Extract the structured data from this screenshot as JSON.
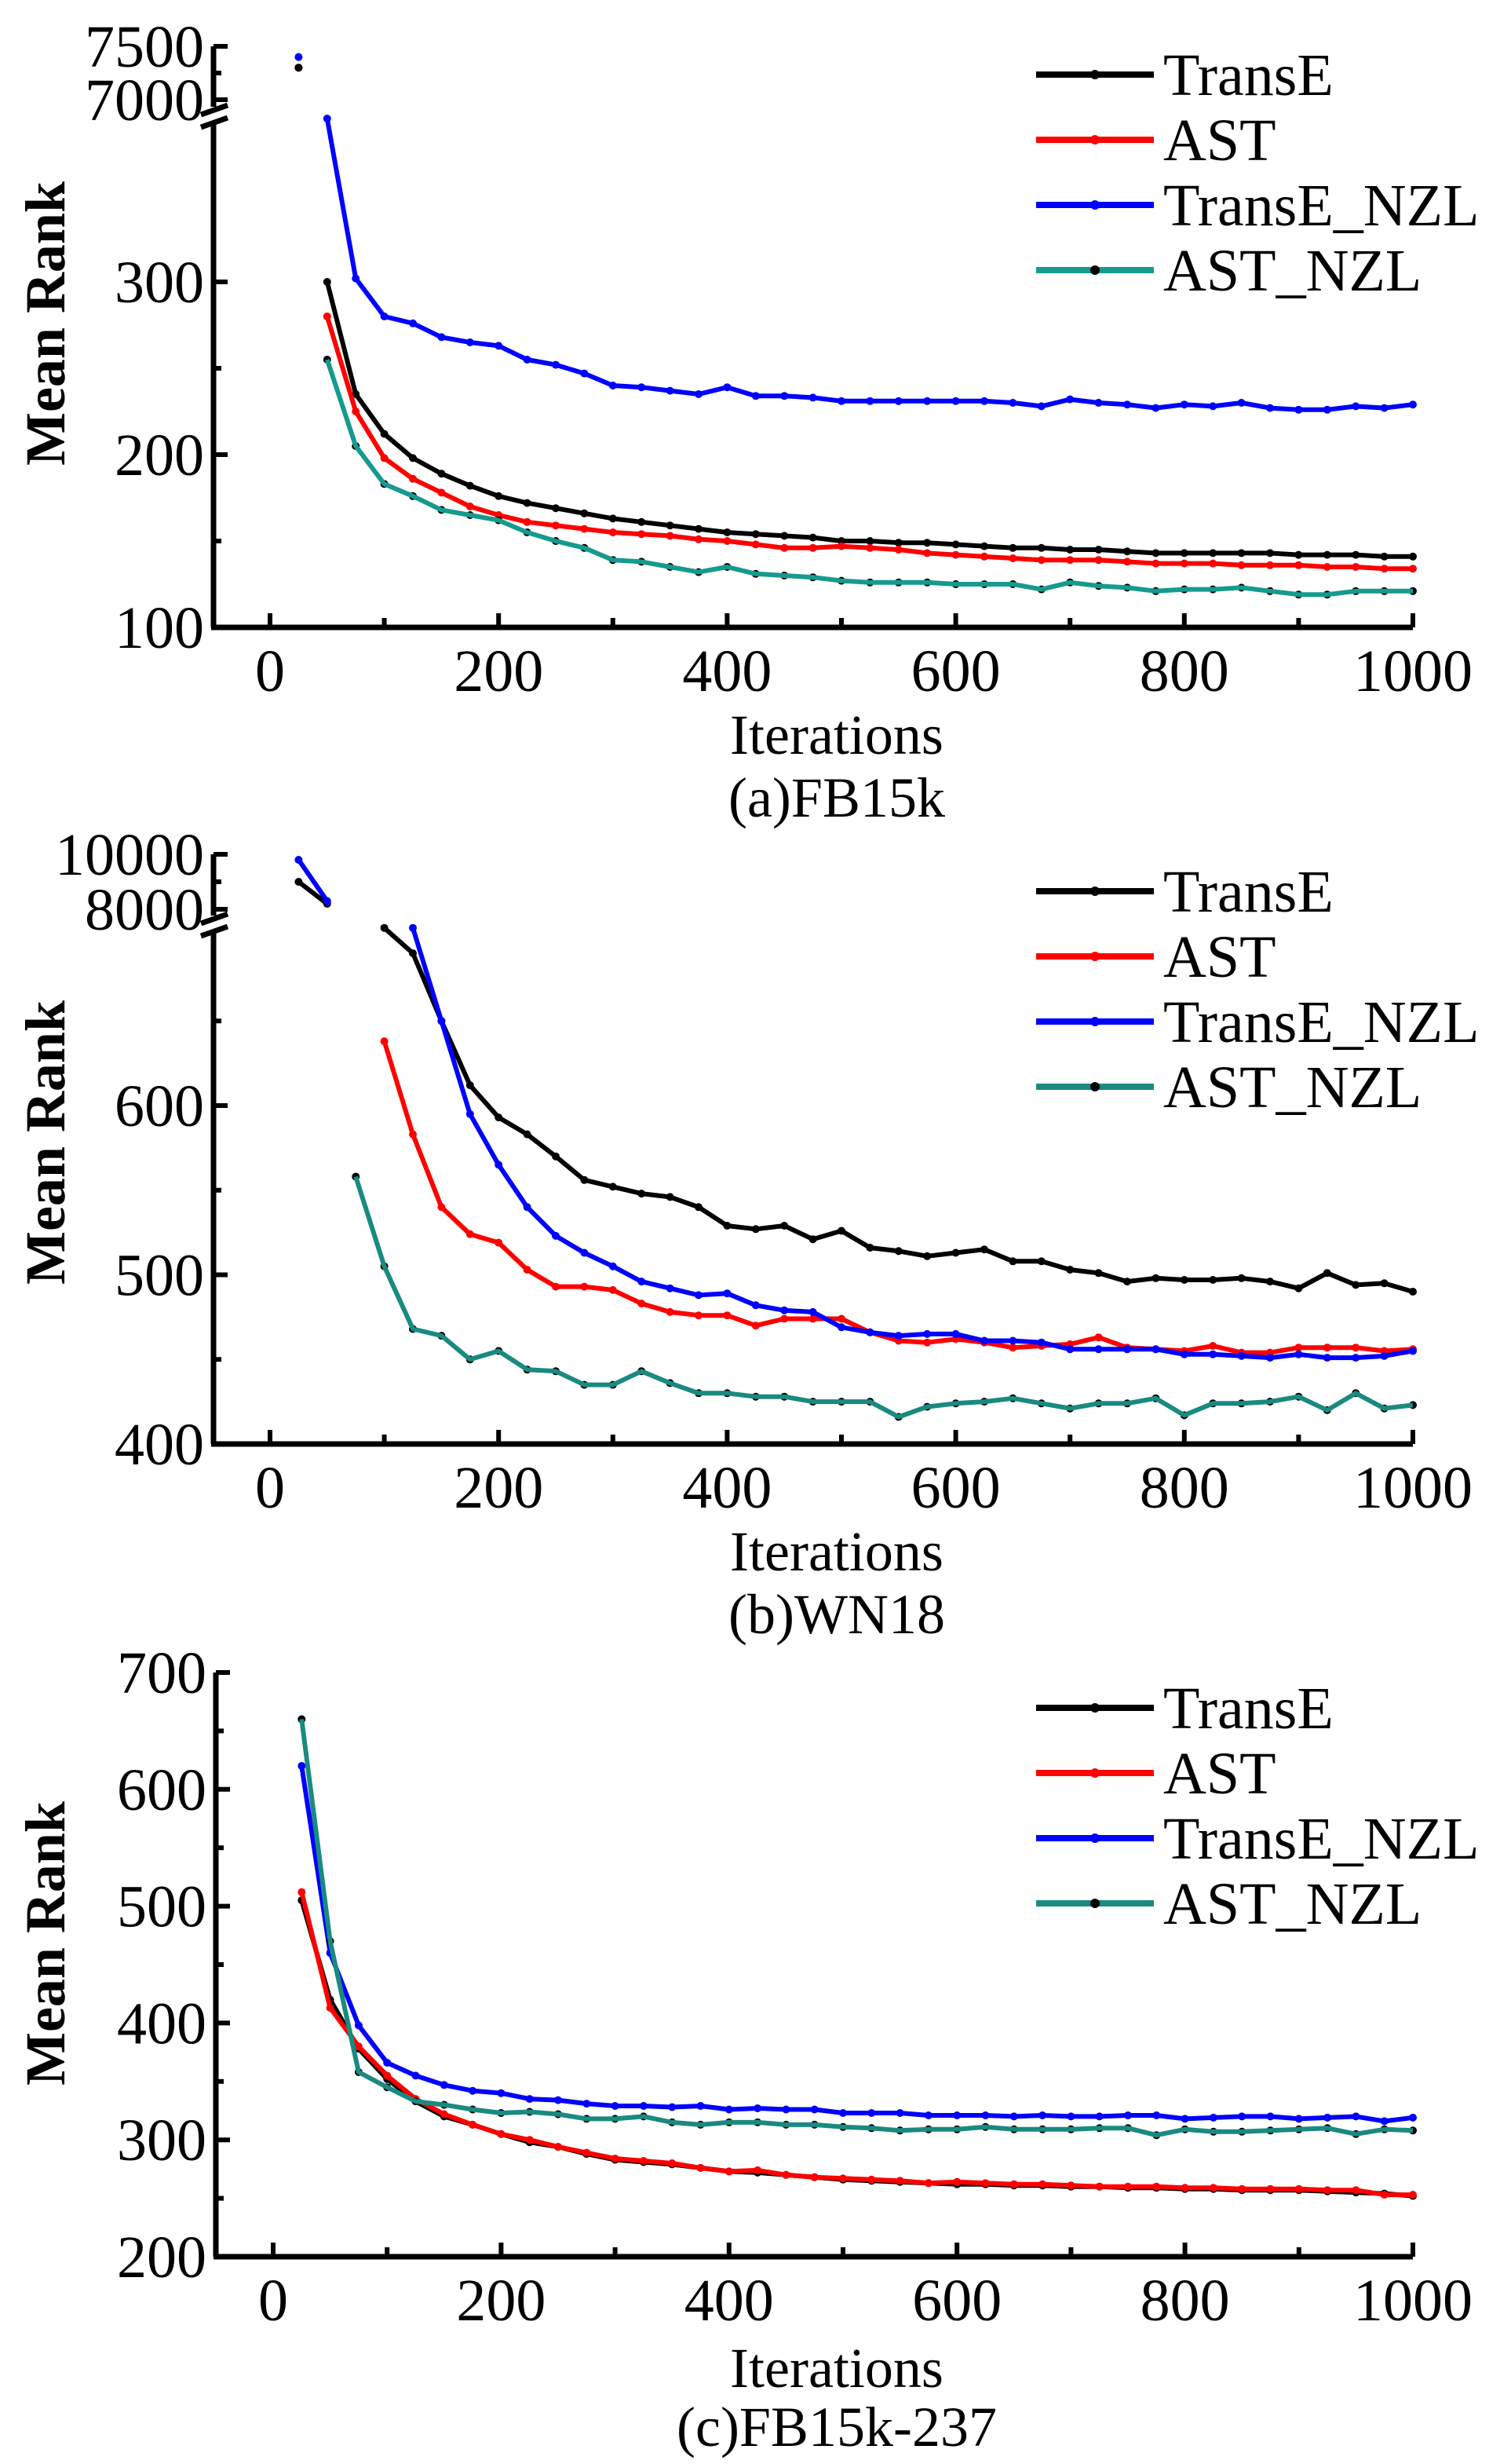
{
  "figure": {
    "legend": [
      "TransE",
      "AST",
      "TransE_NZL",
      "AST_NZL"
    ]
  },
  "chart_data": [
    {
      "type": "line",
      "caption": "(a)FB15k",
      "xlabel": "Iterations",
      "ylabel": "Mean Rank",
      "xlim": [
        -40,
        1000
      ],
      "x_ticks": [
        0,
        200,
        400,
        600,
        800,
        1000
      ],
      "y_axis_break": true,
      "ylim_lower": [
        100,
        350
      ],
      "ylim_upper": [
        7000,
        7500
      ],
      "y_ticks_lower": [
        100,
        200,
        300
      ],
      "y_ticks_upper": [
        7000,
        7500
      ],
      "legend_position": "top-right",
      "grid": false,
      "x": [
        25,
        50,
        75,
        100,
        125,
        150,
        175,
        200,
        225,
        250,
        275,
        300,
        325,
        350,
        375,
        400,
        425,
        450,
        475,
        500,
        525,
        550,
        575,
        600,
        625,
        650,
        675,
        700,
        725,
        750,
        775,
        800,
        825,
        850,
        875,
        900,
        925,
        950,
        975,
        1000
      ],
      "series": [
        {
          "name": "TransE",
          "color": "#000000",
          "values": [
            7300,
            300,
            235,
            212,
            198,
            189,
            182,
            176,
            172,
            169,
            166,
            163,
            161,
            159,
            157,
            155,
            154,
            153,
            152,
            150,
            150,
            149,
            149,
            148,
            147,
            146,
            146,
            145,
            145,
            144,
            143,
            143,
            143,
            143,
            143,
            142,
            142,
            142,
            141,
            141
          ]
        },
        {
          "name": "AST",
          "color": "#ff0000",
          "values": [
            7300,
            280,
            225,
            198,
            186,
            178,
            170,
            165,
            161,
            159,
            157,
            155,
            154,
            153,
            151,
            150,
            148,
            146,
            146,
            147,
            146,
            145,
            143,
            142,
            141,
            140,
            139,
            139,
            139,
            138,
            137,
            137,
            137,
            136,
            136,
            136,
            135,
            135,
            134,
            134
          ]
        },
        {
          "name": "TransE_NZL",
          "color": "#0000ff",
          "values": [
            7400,
            360,
            302,
            280,
            276,
            268,
            265,
            263,
            255,
            252,
            247,
            240,
            239,
            237,
            235,
            239,
            234,
            234,
            233,
            231,
            231,
            231,
            231,
            231,
            231,
            230,
            228,
            232,
            230,
            229,
            227,
            229,
            228,
            230,
            227,
            226,
            226,
            228,
            227,
            229
          ]
        },
        {
          "name": "AST_NZL",
          "color": "#169a8e",
          "values": [
            7300,
            255,
            205,
            183,
            176,
            168,
            165,
            162,
            155,
            150,
            146,
            139,
            138,
            135,
            132,
            135,
            131,
            130,
            129,
            127,
            126,
            126,
            126,
            125,
            125,
            125,
            122,
            126,
            124,
            123,
            121,
            122,
            122,
            123,
            121,
            119,
            119,
            121,
            121,
            121
          ]
        }
      ]
    },
    {
      "type": "line",
      "caption": "(b)WN18",
      "xlabel": "Iterations",
      "ylabel": "Mean Rank",
      "xlim": [
        -40,
        1000
      ],
      "x_ticks": [
        0,
        200,
        400,
        600,
        800,
        1000
      ],
      "y_axis_break": true,
      "ylim_lower": [
        400,
        708
      ],
      "ylim_upper": [
        8000,
        10000
      ],
      "y_ticks_lower": [
        400,
        500,
        600
      ],
      "y_ticks_upper": [
        8000,
        10000
      ],
      "legend_position": "top-right",
      "grid": false,
      "x": [
        25,
        50,
        75,
        100,
        125,
        150,
        175,
        200,
        225,
        250,
        275,
        300,
        325,
        350,
        375,
        400,
        425,
        450,
        475,
        500,
        525,
        550,
        575,
        600,
        625,
        650,
        675,
        700,
        725,
        750,
        775,
        800,
        825,
        850,
        875,
        900,
        925,
        950,
        975,
        1000
      ],
      "series": [
        {
          "name": "TransE",
          "color": "#000000",
          "values": [
            9000,
            8200,
            null,
            705,
            690,
            650,
            612,
            593,
            583,
            570,
            556,
            552,
            548,
            546,
            540,
            529,
            527,
            529,
            521,
            526,
            516,
            514,
            511,
            513,
            515,
            508,
            508,
            503,
            501,
            496,
            498,
            497,
            497,
            498,
            496,
            492,
            501,
            494,
            495,
            490
          ]
        },
        {
          "name": "AST",
          "color": "#ff0000",
          "values": [
            null,
            null,
            null,
            638,
            583,
            540,
            524,
            519,
            503,
            493,
            493,
            491,
            483,
            478,
            476,
            476,
            470,
            474,
            474,
            474,
            466,
            461,
            460,
            462,
            460,
            457,
            458,
            459,
            463,
            457,
            456,
            455,
            458,
            454,
            454,
            457,
            457,
            457,
            455,
            456
          ]
        },
        {
          "name": "TransE_NZL",
          "color": "#0000ff",
          "values": [
            9800,
            8300,
            null,
            null,
            705,
            650,
            595,
            565,
            540,
            523,
            513,
            505,
            496,
            492,
            488,
            489,
            482,
            479,
            478,
            469,
            466,
            464,
            465,
            465,
            461,
            461,
            460,
            456,
            456,
            456,
            456,
            453,
            453,
            452,
            451,
            453,
            451,
            451,
            452,
            455
          ]
        },
        {
          "name": "AST_NZL",
          "color": "#1a8a80",
          "values": [
            null,
            null,
            558,
            505,
            468,
            464,
            450,
            455,
            444,
            443,
            435,
            435,
            443,
            436,
            430,
            430,
            428,
            428,
            425,
            425,
            425,
            416,
            422,
            424,
            425,
            427,
            424,
            421,
            424,
            424,
            427,
            417,
            424,
            424,
            425,
            428,
            420,
            430,
            421,
            423
          ]
        }
      ]
    },
    {
      "type": "line",
      "caption": "(c)FB15k-237",
      "xlabel": "Iterations",
      "ylabel": "Mean Rank",
      "xlim": [
        -40,
        1000
      ],
      "x_ticks": [
        0,
        200,
        400,
        600,
        800,
        1000
      ],
      "y_axis_break": false,
      "ylim": [
        200,
        700
      ],
      "y_ticks": [
        200,
        300,
        400,
        500,
        600,
        700
      ],
      "legend_position": "top-right",
      "grid": false,
      "x": [
        25,
        50,
        75,
        100,
        125,
        150,
        175,
        200,
        225,
        250,
        275,
        300,
        325,
        350,
        375,
        400,
        425,
        450,
        475,
        500,
        525,
        550,
        575,
        600,
        625,
        650,
        675,
        700,
        725,
        750,
        775,
        800,
        825,
        850,
        875,
        900,
        925,
        950,
        975,
        1000
      ],
      "series": [
        {
          "name": "TransE",
          "color": "#000000",
          "values": [
            505,
            420,
            378,
            352,
            333,
            320,
            313,
            305,
            298,
            294,
            288,
            283,
            281,
            279,
            276,
            273,
            272,
            270,
            268,
            266,
            265,
            264,
            263,
            262,
            262,
            261,
            261,
            260,
            260,
            259,
            259,
            258,
            258,
            257,
            257,
            257,
            256,
            255,
            254,
            252
          ]
        },
        {
          "name": "AST",
          "color": "#ff0000",
          "values": [
            512,
            413,
            380,
            355,
            335,
            322,
            313,
            305,
            300,
            294,
            289,
            284,
            282,
            280,
            276,
            273,
            274,
            270,
            268,
            267,
            266,
            265,
            263,
            264,
            263,
            262,
            262,
            261,
            260,
            260,
            260,
            259,
            259,
            258,
            258,
            258,
            257,
            257,
            253,
            253
          ]
        },
        {
          "name": "TransE_NZL",
          "color": "#0000ff",
          "values": [
            620,
            460,
            398,
            366,
            355,
            347,
            342,
            340,
            335,
            334,
            331,
            329,
            329,
            328,
            329,
            326,
            327,
            326,
            326,
            323,
            323,
            323,
            321,
            321,
            321,
            320,
            321,
            320,
            320,
            321,
            321,
            318,
            319,
            320,
            320,
            318,
            319,
            320,
            316,
            319
          ]
        },
        {
          "name": "AST_NZL",
          "color": "#1a8a80",
          "values": [
            660,
            470,
            358,
            345,
            333,
            330,
            326,
            323,
            324,
            322,
            318,
            318,
            320,
            315,
            313,
            315,
            315,
            313,
            313,
            311,
            310,
            308,
            309,
            309,
            311,
            309,
            309,
            309,
            310,
            310,
            304,
            309,
            307,
            307,
            308,
            309,
            310,
            305,
            309,
            308
          ]
        }
      ]
    }
  ]
}
